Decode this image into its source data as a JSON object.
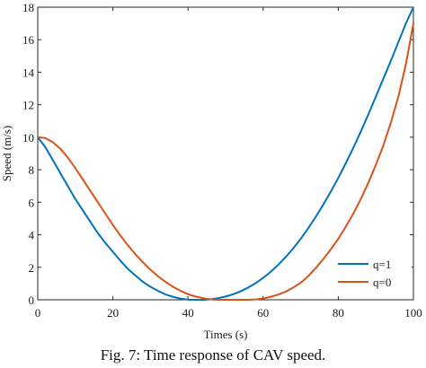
{
  "caption": "Fig. 7: Time response of CAV speed.",
  "chart_data": {
    "type": "line",
    "title": "",
    "xlabel": "Times (s)",
    "ylabel": "Speed (m/s)",
    "xlim": [
      0,
      100
    ],
    "ylim": [
      0,
      18
    ],
    "xticks": [
      0,
      20,
      40,
      60,
      80,
      100
    ],
    "yticks": [
      0,
      2,
      4,
      6,
      8,
      10,
      12,
      14,
      16,
      18
    ],
    "grid": false,
    "legend_position": "bottom-right",
    "series": [
      {
        "name": "q=1",
        "color": "#0072BD",
        "x": [
          0,
          2,
          4,
          6,
          8,
          10,
          12,
          14,
          16,
          18,
          20,
          22,
          24,
          26,
          28,
          30,
          32,
          34,
          36,
          38,
          40,
          42,
          44,
          46,
          48,
          50,
          52,
          54,
          56,
          58,
          60,
          62,
          64,
          66,
          68,
          70,
          72,
          74,
          76,
          78,
          80,
          82,
          84,
          86,
          88,
          90,
          92,
          94,
          96,
          98,
          100
        ],
        "y": [
          10,
          9.4,
          8.6,
          7.8,
          7.0,
          6.2,
          5.5,
          4.8,
          4.1,
          3.5,
          2.95,
          2.4,
          1.9,
          1.5,
          1.1,
          0.8,
          0.55,
          0.33,
          0.18,
          0.07,
          0.01,
          0,
          0,
          0.03,
          0.1,
          0.2,
          0.34,
          0.52,
          0.75,
          1.02,
          1.35,
          1.72,
          2.15,
          2.63,
          3.16,
          3.75,
          4.4,
          5.1,
          5.85,
          6.65,
          7.5,
          8.4,
          9.35,
          10.35,
          11.4,
          12.5,
          13.6,
          14.7,
          15.85,
          17.0,
          18.0
        ]
      },
      {
        "name": "q=0",
        "color": "#D95319",
        "x": [
          0,
          2,
          4,
          6,
          8,
          10,
          12,
          14,
          16,
          18,
          20,
          22,
          24,
          26,
          28,
          30,
          32,
          34,
          36,
          38,
          40,
          42,
          44,
          46,
          48,
          50,
          52,
          54,
          56,
          58,
          60,
          62,
          64,
          66,
          68,
          70,
          72,
          74,
          76,
          78,
          80,
          82,
          84,
          86,
          88,
          90,
          92,
          94,
          96,
          98,
          100
        ],
        "y": [
          10,
          9.95,
          9.7,
          9.3,
          8.75,
          8.1,
          7.4,
          6.7,
          6.0,
          5.3,
          4.6,
          3.95,
          3.35,
          2.8,
          2.3,
          1.85,
          1.45,
          1.1,
          0.8,
          0.55,
          0.35,
          0.2,
          0.1,
          0.03,
          0,
          0,
          0,
          0,
          0,
          0.02,
          0.08,
          0.18,
          0.32,
          0.5,
          0.75,
          1.05,
          1.45,
          1.95,
          2.5,
          3.1,
          3.75,
          4.5,
          5.3,
          6.2,
          7.2,
          8.3,
          9.5,
          10.9,
          12.5,
          14.5,
          17.0
        ]
      }
    ]
  }
}
